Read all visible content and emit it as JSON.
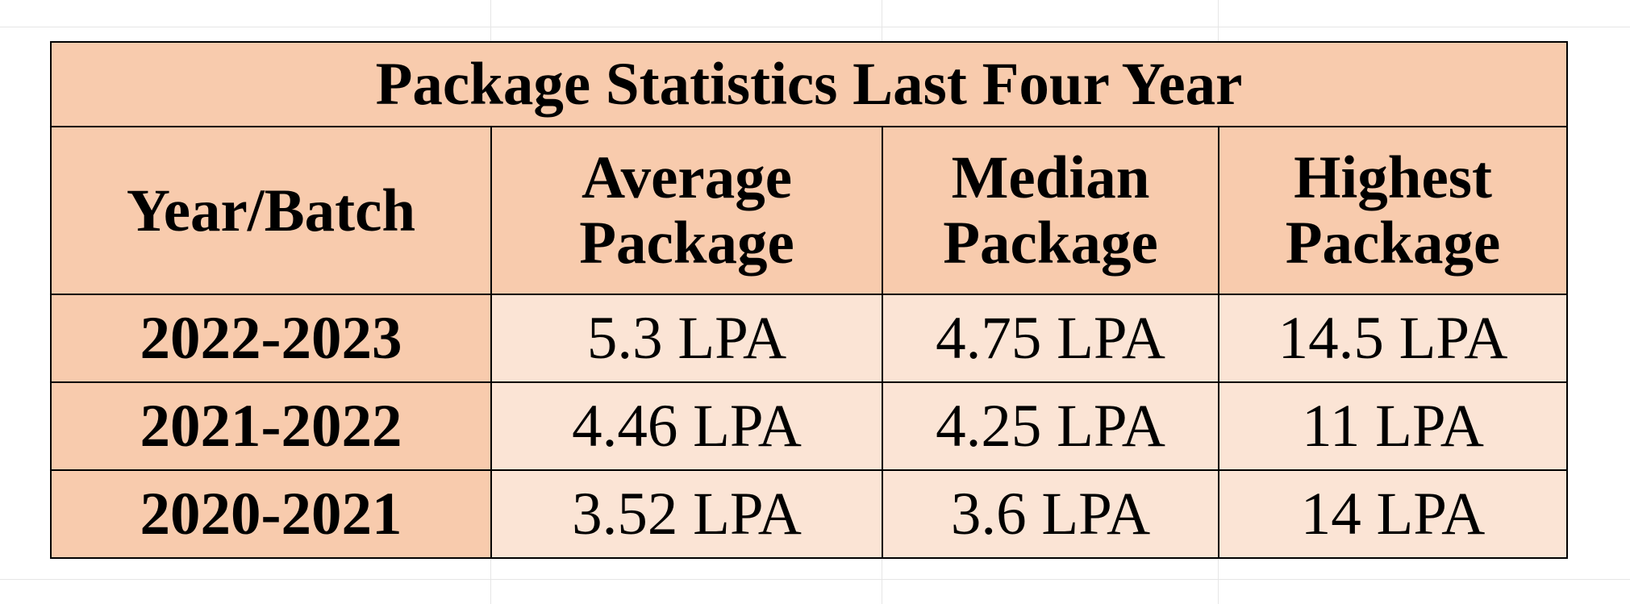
{
  "table": {
    "title": "Package Statistics Last Four Year",
    "headers": [
      {
        "line1": "Year/Batch",
        "line2": ""
      },
      {
        "line1": "Average",
        "line2": "Package"
      },
      {
        "line1": "Median",
        "line2": "Package"
      },
      {
        "line1": "Highest",
        "line2": "Package"
      }
    ],
    "rows": [
      {
        "year": "2022-2023",
        "average": "5.3 LPA",
        "median": "4.75 LPA",
        "highest": "14.5 LPA"
      },
      {
        "year": "2021-2022",
        "average": "4.46 LPA",
        "median": "4.25 LPA",
        "highest": "11 LPA"
      },
      {
        "year": "2020-2021",
        "average": "3.52 LPA",
        "median": "3.6 LPA",
        "highest": "14 LPA"
      }
    ],
    "colors": {
      "header_fill": "#f8cbad",
      "body_fill": "#fbe4d5",
      "border": "#000000"
    }
  }
}
